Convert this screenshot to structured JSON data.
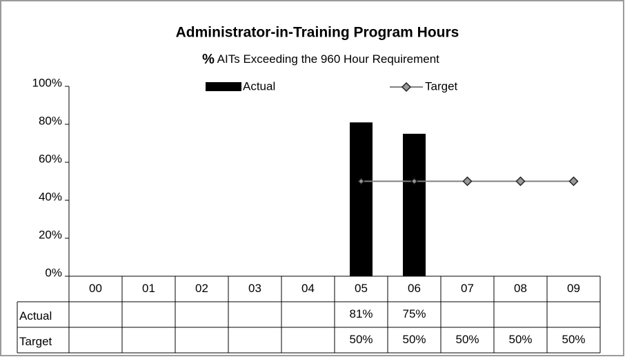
{
  "chart_data": {
    "type": "bar_line_table",
    "title": "Administrator-in-Training Program Hours",
    "subtitle": [
      "%",
      "AITs Exceeding the 960 Hour Requirement"
    ],
    "categories": [
      "00",
      "01",
      "02",
      "03",
      "04",
      "05",
      "06",
      "07",
      "08",
      "09"
    ],
    "series": [
      {
        "name": "Actual",
        "type": "bar",
        "color": "#000000",
        "values": [
          null,
          null,
          null,
          null,
          null,
          81,
          75,
          null,
          null,
          null
        ],
        "value_labels": [
          null,
          null,
          null,
          null,
          null,
          "81%",
          "75%",
          null,
          null,
          null
        ]
      },
      {
        "name": "Target",
        "type": "line",
        "color": "#808080",
        "marker_color": "#999999",
        "values": [
          null,
          null,
          null,
          null,
          null,
          50,
          50,
          50,
          50,
          50
        ],
        "value_labels": [
          null,
          null,
          null,
          null,
          null,
          "50%",
          "50%",
          "50%",
          "50%",
          "50%"
        ]
      }
    ],
    "ylim": [
      0,
      100
    ],
    "yticks": [
      {
        "value": 0,
        "label": "0%"
      },
      {
        "value": 20,
        "label": "20%"
      },
      {
        "value": 40,
        "label": "40%"
      },
      {
        "value": 60,
        "label": "60%"
      },
      {
        "value": 80,
        "label": "80%"
      },
      {
        "value": 100,
        "label": "100%"
      }
    ],
    "legend": "top",
    "data_table": true
  }
}
